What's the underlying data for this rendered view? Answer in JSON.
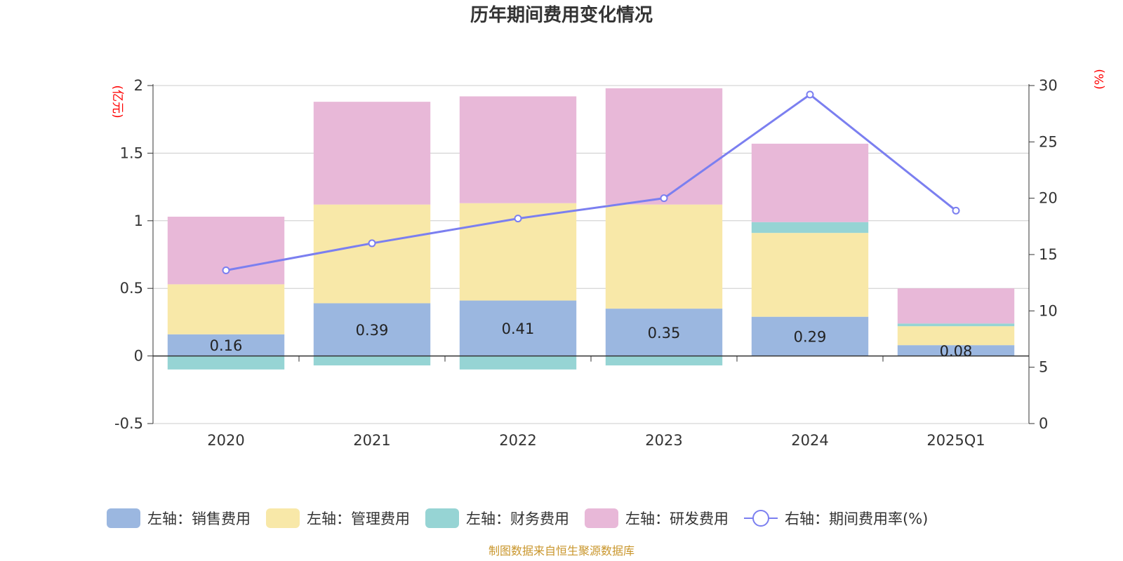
{
  "chart_data": {
    "type": "bar",
    "title": "历年期间费用变化情况",
    "categories": [
      "2020",
      "2021",
      "2022",
      "2023",
      "2024",
      "2025Q1"
    ],
    "y_left": {
      "unit": "(亿元)",
      "ticks": [
        "2",
        "1.5",
        "1",
        "0.5",
        "0",
        "-0.5"
      ],
      "range": [
        -0.5,
        2
      ]
    },
    "y_right": {
      "unit": "(%)",
      "ticks": [
        "30",
        "25",
        "20",
        "15",
        "10",
        "5",
        "0"
      ],
      "range": [
        0,
        30
      ]
    },
    "grid": true,
    "legend_position": "bottom",
    "series": [
      {
        "name": "左轴：销售费用",
        "axis": "left",
        "type": "bar",
        "color": "#9bb7e0",
        "values": [
          0.16,
          0.39,
          0.41,
          0.35,
          0.29,
          0.08
        ],
        "labels": [
          "0.16",
          "0.39",
          "0.41",
          "0.35",
          "0.29",
          "0.08"
        ]
      },
      {
        "name": "左轴：管理费用",
        "axis": "left",
        "type": "bar",
        "color": "#f8e8a8",
        "values": [
          0.37,
          0.73,
          0.72,
          0.77,
          0.62,
          0.14
        ]
      },
      {
        "name": "左轴：财务费用",
        "axis": "left",
        "type": "bar",
        "color": "#96d4d4",
        "values": [
          -0.1,
          -0.07,
          -0.1,
          -0.07,
          0.08,
          0.02
        ]
      },
      {
        "name": "左轴：研发费用",
        "axis": "left",
        "type": "bar",
        "color": "#e8b8d8",
        "values": [
          0.5,
          0.76,
          0.79,
          0.86,
          0.58,
          0.26
        ]
      },
      {
        "name": "右轴：期间费用率(%)",
        "axis": "right",
        "type": "line",
        "color": "#7b7ff0",
        "values": [
          13.6,
          16.0,
          18.2,
          20.0,
          29.2,
          18.9
        ]
      }
    ],
    "source": "制图数据来自恒生聚源数据库"
  }
}
